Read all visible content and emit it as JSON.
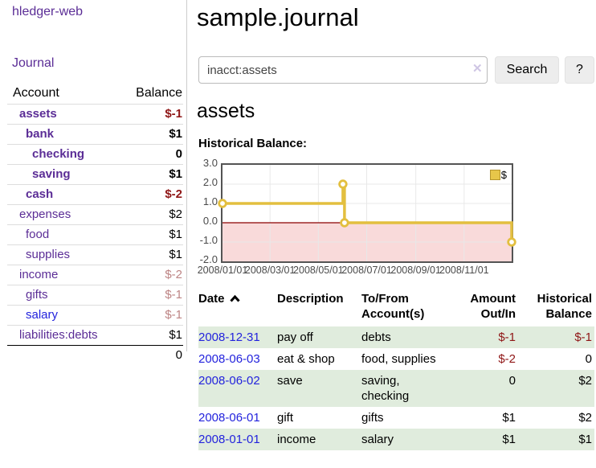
{
  "app": {
    "brand": "hledger-web",
    "nav_journal": "Journal"
  },
  "sidebar": {
    "table": {
      "col_account": "Account",
      "col_balance": "Balance"
    },
    "accounts": [
      {
        "name": "assets",
        "level": 1,
        "bold": true,
        "balance": "$-1",
        "balance_tone": "neg-strong",
        "link_tone": "purple"
      },
      {
        "name": "bank",
        "level": 2,
        "bold": true,
        "balance": "$1",
        "balance_tone": "normal",
        "link_tone": "purple"
      },
      {
        "name": "checking",
        "level": 3,
        "bold": true,
        "balance": "0",
        "balance_tone": "normal",
        "link_tone": "purple"
      },
      {
        "name": "saving",
        "level": 3,
        "bold": true,
        "balance": "$1",
        "balance_tone": "normal",
        "link_tone": "purple"
      },
      {
        "name": "cash",
        "level": 2,
        "bold": true,
        "balance": "$-2",
        "balance_tone": "neg-strong",
        "link_tone": "purple"
      },
      {
        "name": "expenses",
        "level": 1,
        "bold": false,
        "balance": "$2",
        "balance_tone": "normal",
        "link_tone": "purple"
      },
      {
        "name": "food",
        "level": 2,
        "bold": false,
        "balance": "$1",
        "balance_tone": "normal",
        "link_tone": "purple"
      },
      {
        "name": "supplies",
        "level": 2,
        "bold": false,
        "balance": "$1",
        "balance_tone": "normal",
        "link_tone": "purple"
      },
      {
        "name": "income",
        "level": 1,
        "bold": false,
        "balance": "$-2",
        "balance_tone": "neg-weak",
        "link_tone": "purple"
      },
      {
        "name": "gifts",
        "level": 2,
        "bold": false,
        "balance": "$-1",
        "balance_tone": "neg-weak",
        "link_tone": "purple"
      },
      {
        "name": "salary",
        "level": 2,
        "bold": false,
        "balance": "$-1",
        "balance_tone": "neg-weak",
        "link_tone": "blue"
      },
      {
        "name": "liabilities:debts",
        "level": 1,
        "bold": false,
        "balance": "$1",
        "balance_tone": "normal",
        "link_tone": "purple"
      }
    ],
    "total": "0"
  },
  "main": {
    "title": "sample.journal",
    "search": {
      "value": "inacct:assets",
      "clear_icon": "✕",
      "button_label": "Search",
      "help_label": "?"
    },
    "account_heading": "assets"
  },
  "chart_data": {
    "type": "line",
    "step": true,
    "title": "Historical Balance:",
    "series": [
      {
        "name": "$",
        "color": "#e3bf3f",
        "points": [
          [
            "2008-01-01",
            1
          ],
          [
            "2008-06-01",
            2
          ],
          [
            "2008-06-03",
            0
          ],
          [
            "2008-12-31",
            -1
          ]
        ]
      }
    ],
    "x_tick_labels": [
      "2008/01/01",
      "2008/03/01",
      "2008/05/01",
      "2008/07/01",
      "2008/09/01",
      "2008/11/01"
    ],
    "x_tick_dates": [
      "2008-01-01",
      "2008-03-01",
      "2008-05-01",
      "2008-07-01",
      "2008-09-01",
      "2008-11-01"
    ],
    "y_ticks": [
      "3.0",
      "2.0",
      "1.0",
      "0.0",
      "-1.0",
      "-2.0"
    ],
    "ylim": [
      -2,
      3
    ],
    "xlim": [
      "2008-01-01",
      "2008-12-31"
    ],
    "grid": true,
    "legend_position": "top-right",
    "grid_color": "#e8e8e8",
    "negative_region_color": "#f9dada",
    "zero_line_color": "#8b0000",
    "marker": {
      "fill": "#ffffff",
      "stroke": "#e3bf3f"
    }
  },
  "register": {
    "headers": {
      "date": "Date",
      "description": "Description",
      "accounts": "To/From\nAccount(s)",
      "amount": "Amount\nOut/In",
      "balance": "Historical\nBalance"
    },
    "rows": [
      {
        "date": "2008-12-31",
        "description": "pay off",
        "accounts": "debts",
        "amount": "$-1",
        "balance": "$-1"
      },
      {
        "date": "2008-06-03",
        "description": "eat & shop",
        "accounts": "food, supplies",
        "amount": "$-2",
        "balance": "0"
      },
      {
        "date": "2008-06-02",
        "description": "save",
        "accounts": "saving,\nchecking",
        "amount": "0",
        "balance": "$2"
      },
      {
        "date": "2008-06-01",
        "description": "gift",
        "accounts": "gifts",
        "amount": "$1",
        "balance": "$2"
      },
      {
        "date": "2008-01-01",
        "description": "income",
        "accounts": "salary",
        "amount": "$1",
        "balance": "$1"
      }
    ]
  }
}
